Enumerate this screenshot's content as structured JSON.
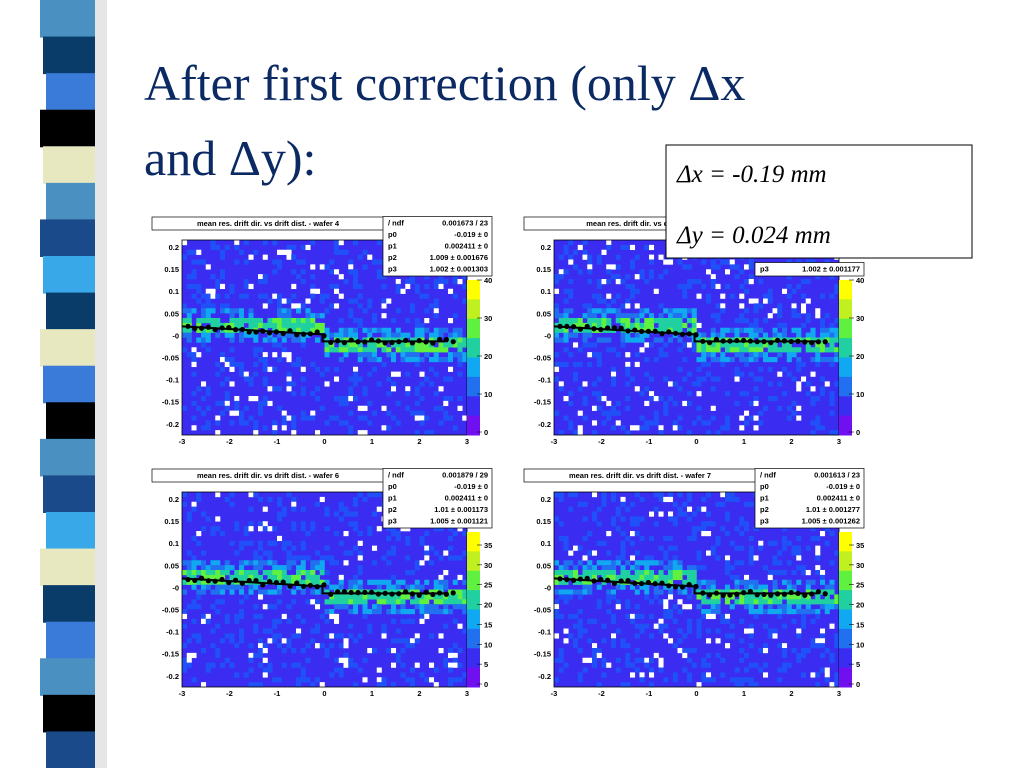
{
  "title_lines": [
    "After first correction (only Δx",
    "and Δy):"
  ],
  "result_box": [
    "Δx = -0.19 mm",
    "Δy = 0.024 mm"
  ],
  "plots": [
    {
      "title": "mean res. drift dir. vs drift dist. - wafer 4",
      "stats": [
        [
          "/ ndf",
          "0.001673 / 23"
        ],
        [
          "p0",
          "-0.019 ± 0"
        ],
        [
          "p1",
          "0.002411 ± 0"
        ],
        [
          "p2",
          "1.009 ± 0.001676"
        ],
        [
          "p3",
          "1.002 ± 0.001303"
        ]
      ],
      "xticks": [
        "-3",
        "-2",
        "-1",
        "0",
        "1",
        "2",
        "3"
      ],
      "yticks": [
        "0.2",
        "0.15",
        "0.1",
        "0.05",
        "-0",
        "-0.05",
        "-0.1",
        "-0.15",
        "-0.2"
      ],
      "zticks": [
        "0",
        "10",
        "20",
        "30",
        "40"
      ]
    },
    {
      "title": "mean res. drift dir. vs drift dist",
      "stats": [
        [
          "p3",
          "1.002 ± 0.001177"
        ]
      ],
      "xticks": [
        "-3",
        "-2",
        "-1",
        "0",
        "1",
        "2",
        "3"
      ],
      "yticks": [
        "0.2",
        "0.15",
        "0.1",
        "0.05",
        "-0",
        "-0.05",
        "-0.1",
        "-0.15",
        "-0.2"
      ],
      "zticks": [
        "0",
        "10",
        "20",
        "30",
        "40"
      ]
    },
    {
      "title": "mean res. drift dir. vs drift dist. - wafer 6",
      "stats": [
        [
          "/ ndf",
          "0.001879 / 29"
        ],
        [
          "p0",
          "-0.019 ± 0"
        ],
        [
          "p1",
          "0.002411 ± 0"
        ],
        [
          "p2",
          "1.01 ± 0.001173"
        ],
        [
          "p3",
          "1.005 ± 0.001121"
        ]
      ],
      "xticks": [
        "-3",
        "-2",
        "-1",
        "0",
        "1",
        "2",
        "3"
      ],
      "yticks": [
        "0.2",
        "0.15",
        "0.1",
        "0.05",
        "-0",
        "-0.05",
        "-0.1",
        "-0.15",
        "-0.2"
      ],
      "zticks": [
        "0",
        "5",
        "10",
        "15",
        "20",
        "25",
        "30",
        "35"
      ]
    },
    {
      "title": "mean res. drift dir. vs drift dist. - wafer 7",
      "stats": [
        [
          "/ ndf",
          "0.001613 / 23"
        ],
        [
          "p0",
          "-0.019 ± 0"
        ],
        [
          "p1",
          "0.002411 ± 0"
        ],
        [
          "p2",
          "1.01 ± 0.001277"
        ],
        [
          "p3",
          "1.005 ± 0.001262"
        ]
      ],
      "xticks": [
        "-3",
        "-2",
        "-1",
        "0",
        "1",
        "2",
        "3"
      ],
      "yticks": [
        "0.2",
        "0.15",
        "0.1",
        "0.05",
        "-0",
        "-0.05",
        "-0.1",
        "-0.15",
        "-0.2"
      ],
      "zticks": [
        "0",
        "5",
        "10",
        "15",
        "20",
        "25",
        "30",
        "35"
      ]
    }
  ]
}
